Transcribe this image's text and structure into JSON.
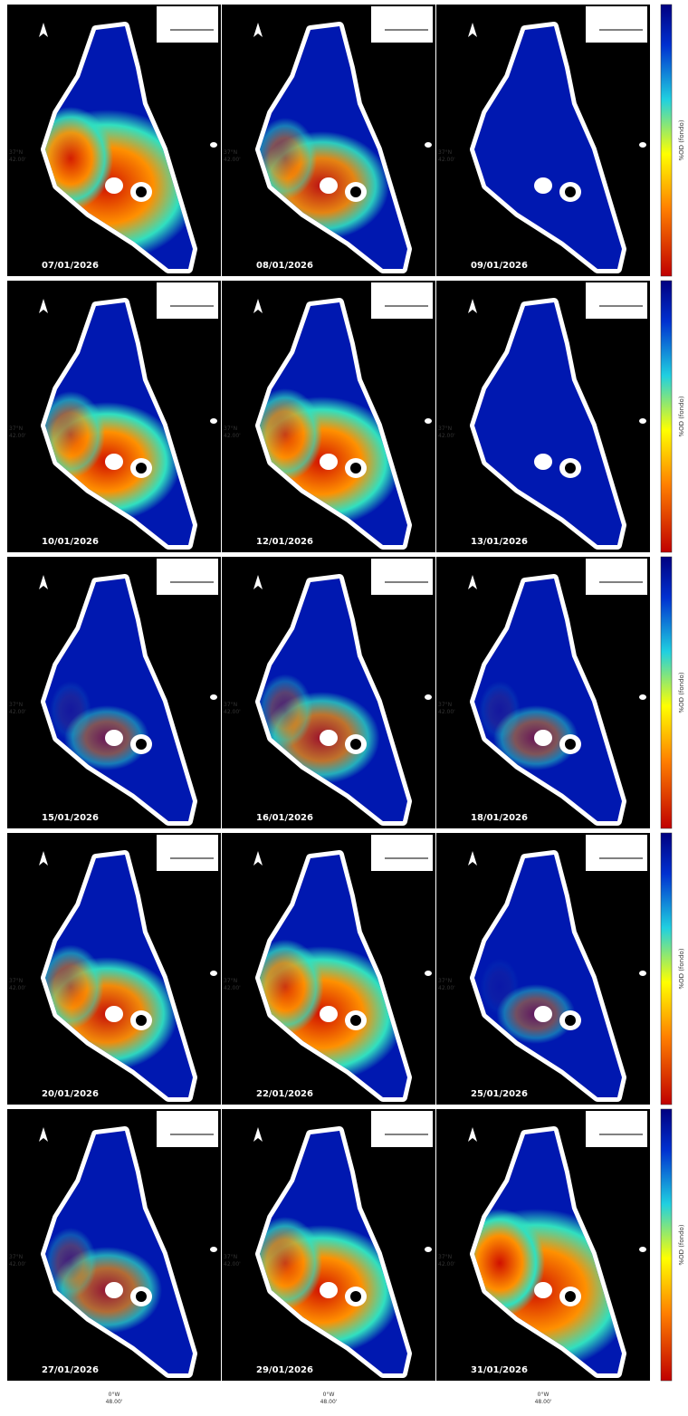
{
  "panels": [
    {
      "date": "07/01/2026"
    },
    {
      "date": "08/01/2026"
    },
    {
      "date": "09/01/2026"
    },
    {
      "date": "10/01/2026"
    },
    {
      "date": "12/01/2026"
    },
    {
      "date": "13/01/2026"
    },
    {
      "date": "15/01/2026"
    },
    {
      "date": "16/01/2026"
    },
    {
      "date": "18/01/2026"
    },
    {
      "date": "20/01/2026"
    },
    {
      "date": "22/01/2026"
    },
    {
      "date": "25/01/2026"
    },
    {
      "date": "27/01/2026"
    },
    {
      "date": "29/01/2026"
    },
    {
      "date": "31/01/2026"
    }
  ],
  "latitude_label": [
    "37°N",
    "42.00'"
  ],
  "longitude_label": [
    "0°W",
    "48.00'"
  ],
  "colorbar_label": "%OD (fondo)"
}
